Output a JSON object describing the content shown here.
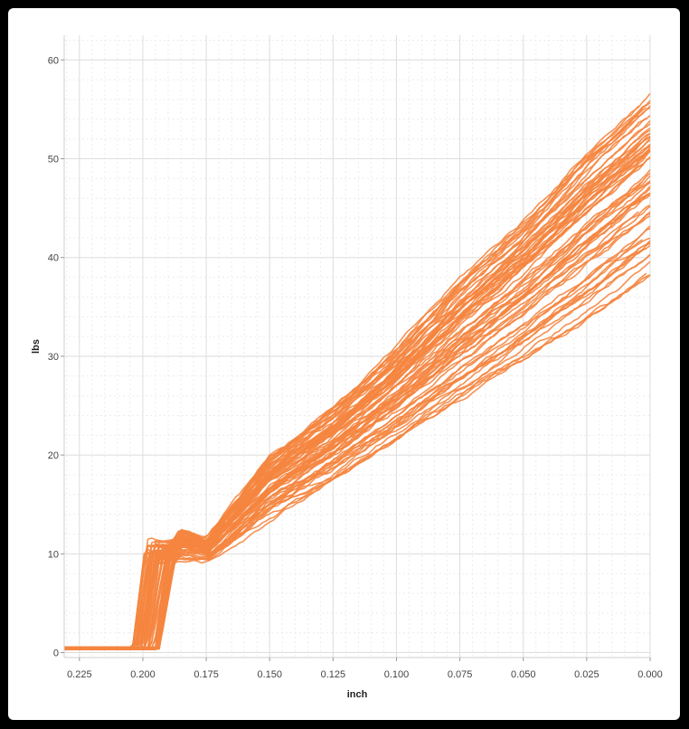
{
  "chart_data": {
    "type": "line",
    "title": "",
    "xlabel": "inch",
    "ylabel": "lbs",
    "x_reversed": true,
    "xlim": [
      0.0,
      0.231
    ],
    "ylim": [
      -0.5,
      62.5
    ],
    "x_ticks": [
      "0.225",
      "0.200",
      "0.175",
      "0.150",
      "0.125",
      "0.100",
      "0.075",
      "0.050",
      "0.025",
      "0.000"
    ],
    "y_ticks": [
      "0",
      "10",
      "20",
      "30",
      "40",
      "50",
      "60"
    ],
    "grid": true,
    "legend": "none",
    "series_color": "#F5853F",
    "series_count": 70,
    "series_envelope": {
      "description_points": [
        {
          "x": 0.231,
          "y_min": 0.3,
          "y_max": 0.6
        },
        {
          "x": 0.205,
          "y_min": 0.3,
          "y_max": 0.6
        },
        {
          "x": 0.195,
          "y_min": 0.4,
          "y_max": 9.5
        },
        {
          "x": 0.185,
          "y_min": 9.0,
          "y_max": 12.5
        },
        {
          "x": 0.175,
          "y_min": 9.0,
          "y_max": 11.5
        },
        {
          "x": 0.15,
          "y_min": 13.5,
          "y_max": 20.0
        },
        {
          "x": 0.125,
          "y_min": 17.0,
          "y_max": 25.0
        },
        {
          "x": 0.1,
          "y_min": 21.0,
          "y_max": 31.0
        },
        {
          "x": 0.075,
          "y_min": 25.0,
          "y_max": 38.0
        },
        {
          "x": 0.05,
          "y_min": 29.0,
          "y_max": 44.0
        },
        {
          "x": 0.025,
          "y_min": 33.0,
          "y_max": 51.0
        },
        {
          "x": 0.0,
          "y_min": 37.5,
          "y_max": 57.0
        }
      ]
    }
  }
}
